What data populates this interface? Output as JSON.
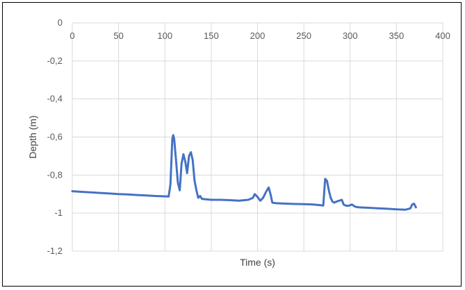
{
  "chart_data": {
    "type": "line",
    "title": "",
    "xlabel": "Time (s)",
    "ylabel": "Depth (m)",
    "xlim": [
      0,
      400
    ],
    "ylim": [
      -1.2,
      0
    ],
    "x_ticks": [
      0,
      50,
      100,
      150,
      200,
      250,
      300,
      350,
      400
    ],
    "x_tick_labels": [
      "0",
      "50",
      "100",
      "150",
      "200",
      "250",
      "300",
      "350",
      "400"
    ],
    "y_ticks": [
      0,
      -0.2,
      -0.4,
      -0.6,
      -0.8,
      -1,
      -1.2
    ],
    "y_tick_labels": [
      "0",
      "-0,2",
      "-0,4",
      "-0,6",
      "-0,8",
      "-1",
      "-1,2"
    ],
    "grid": true,
    "legend": "none",
    "series": [
      {
        "color": "#4472C4",
        "x": [
          0,
          10,
          20,
          30,
          40,
          50,
          60,
          70,
          80,
          90,
          100,
          104,
          106,
          108,
          109,
          110,
          112,
          114,
          116,
          118,
          120,
          122,
          124,
          126,
          128,
          130,
          132,
          134,
          136,
          138,
          140,
          145,
          150,
          160,
          170,
          180,
          190,
          195,
          197,
          200,
          203,
          206,
          209,
          212,
          214,
          216,
          220,
          230,
          240,
          250,
          260,
          268,
          271,
          273,
          275,
          277,
          279,
          281,
          283,
          285,
          288,
          291,
          293,
          295,
          298,
          302,
          305,
          307,
          310,
          320,
          330,
          340,
          350,
          360,
          365,
          367,
          369,
          371
        ],
        "y": [
          -0.885,
          -0.888,
          -0.891,
          -0.894,
          -0.897,
          -0.9,
          -0.902,
          -0.905,
          -0.907,
          -0.91,
          -0.912,
          -0.913,
          -0.85,
          -0.61,
          -0.59,
          -0.61,
          -0.72,
          -0.84,
          -0.88,
          -0.74,
          -0.69,
          -0.73,
          -0.79,
          -0.7,
          -0.68,
          -0.72,
          -0.83,
          -0.88,
          -0.92,
          -0.91,
          -0.925,
          -0.928,
          -0.93,
          -0.93,
          -0.932,
          -0.935,
          -0.93,
          -0.92,
          -0.9,
          -0.915,
          -0.935,
          -0.92,
          -0.89,
          -0.865,
          -0.9,
          -0.945,
          -0.948,
          -0.95,
          -0.952,
          -0.953,
          -0.955,
          -0.958,
          -0.96,
          -0.82,
          -0.83,
          -0.88,
          -0.92,
          -0.94,
          -0.945,
          -0.94,
          -0.935,
          -0.93,
          -0.955,
          -0.96,
          -0.962,
          -0.955,
          -0.965,
          -0.968,
          -0.97,
          -0.972,
          -0.975,
          -0.977,
          -0.98,
          -0.982,
          -0.975,
          -0.955,
          -0.95,
          -0.97
        ]
      }
    ]
  }
}
